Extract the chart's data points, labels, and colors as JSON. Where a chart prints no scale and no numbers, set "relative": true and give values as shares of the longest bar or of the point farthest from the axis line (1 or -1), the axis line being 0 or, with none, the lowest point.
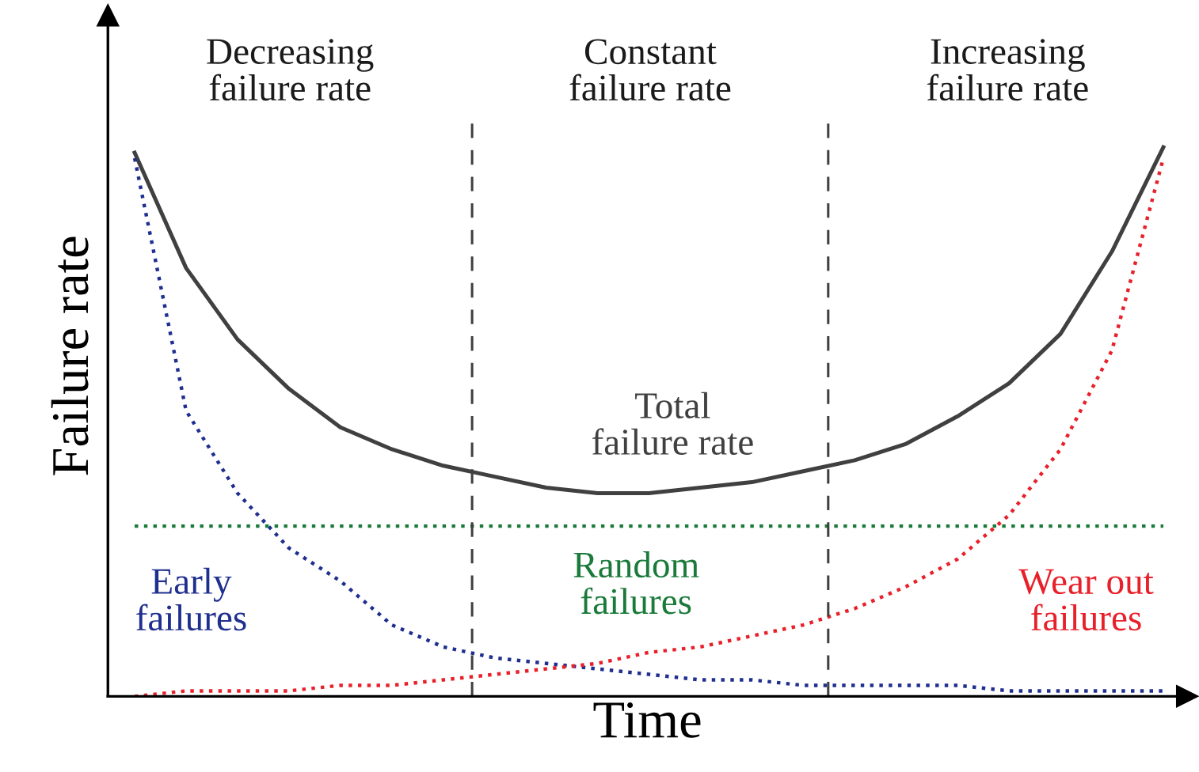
{
  "chart_data": {
    "type": "line",
    "relative": true,
    "xlabel": "Time",
    "ylabel": "Failure rate",
    "categories": [
      null,
      null,
      null,
      null,
      null,
      null,
      null,
      null,
      null,
      null,
      null,
      null,
      null,
      null,
      null,
      null,
      null,
      null,
      null,
      null,
      null
    ],
    "series": [
      {
        "name": "Total\nfailure rate",
        "color": "#404040",
        "line_style": "solid",
        "values": [
          0.99,
          0.78,
          0.65,
          0.56,
          0.49,
          0.45,
          0.42,
          0.4,
          0.38,
          0.37,
          0.37,
          0.38,
          0.39,
          0.41,
          0.43,
          0.46,
          0.51,
          0.57,
          0.66,
          0.81,
          1
        ]
      },
      {
        "name": "Early\nfailures",
        "color": "#1f2f8f",
        "line_style": "dotted",
        "values": [
          0.98,
          0.52,
          0.37,
          0.27,
          0.21,
          0.13,
          0.09,
          0.07,
          0.06,
          0.05,
          0.04,
          0.03,
          0.03,
          0.02,
          0.02,
          0.02,
          0.02,
          0.01,
          0.01,
          0.01,
          0.01
        ]
      },
      {
        "name": "Random\nfailures",
        "color": "#1a7a3a",
        "line_style": "dotted",
        "values": [
          0.31,
          0.31,
          0.31,
          0.31,
          0.31,
          0.31,
          0.31,
          0.31,
          0.31,
          0.31,
          0.31,
          0.31,
          0.31,
          0.31,
          0.31,
          0.31,
          0.31,
          0.31,
          0.31,
          0.31,
          0.31
        ]
      },
      {
        "name": "Wear out\nfailures",
        "color": "#e8202a",
        "line_style": "dotted",
        "values": [
          0,
          0.01,
          0.01,
          0.01,
          0.02,
          0.02,
          0.03,
          0.04,
          0.05,
          0.06,
          0.08,
          0.09,
          0.11,
          0.13,
          0.16,
          0.2,
          0.25,
          0.33,
          0.45,
          0.63,
          0.98
        ]
      }
    ],
    "annotations": [
      "Decreasing\nfailure rate",
      "Constant\nfailure rate",
      "Increasing\nfailure rate"
    ],
    "legend": false
  }
}
